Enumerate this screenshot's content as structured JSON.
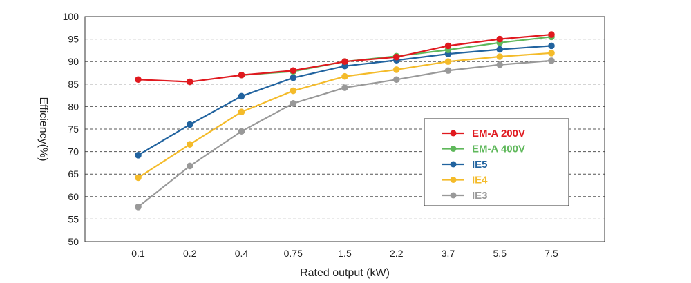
{
  "chart_data": {
    "type": "line",
    "xlabel": "Rated output (kW)",
    "ylabel": "Efficiency(%)",
    "categories": [
      "0.1",
      "0.2",
      "0.4",
      "0.75",
      "1.5",
      "2.2",
      "3.7",
      "5.5",
      "7.5"
    ],
    "ylim": [
      50,
      100
    ],
    "yticks": [
      50,
      55,
      60,
      65,
      70,
      75,
      80,
      85,
      90,
      95,
      100
    ],
    "grid": "horizontal-dashed",
    "legend_position": "right",
    "series": [
      {
        "name": "EM-A 200V",
        "color": "#e0191f",
        "values": [
          86.0,
          85.5,
          87.0,
          88.0,
          90.0,
          91.0,
          93.5,
          95.0,
          96.0
        ]
      },
      {
        "name": "EM-A 400V",
        "color": "#5fb85b",
        "values": [
          null,
          null,
          87.0,
          87.8,
          90.0,
          91.2,
          92.6,
          94.2,
          95.5
        ]
      },
      {
        "name": "IE5",
        "color": "#21639f",
        "values": [
          69.2,
          76.0,
          82.3,
          86.4,
          89.0,
          90.3,
          91.7,
          92.7,
          93.5
        ]
      },
      {
        "name": "IE4",
        "color": "#f4bb2a",
        "values": [
          64.2,
          71.6,
          78.8,
          83.5,
          86.7,
          88.2,
          90.0,
          91.1,
          91.9
        ]
      },
      {
        "name": "IE3",
        "color": "#999999",
        "values": [
          57.7,
          66.8,
          74.5,
          80.7,
          84.2,
          86.0,
          88.0,
          89.3,
          90.2
        ]
      }
    ]
  }
}
